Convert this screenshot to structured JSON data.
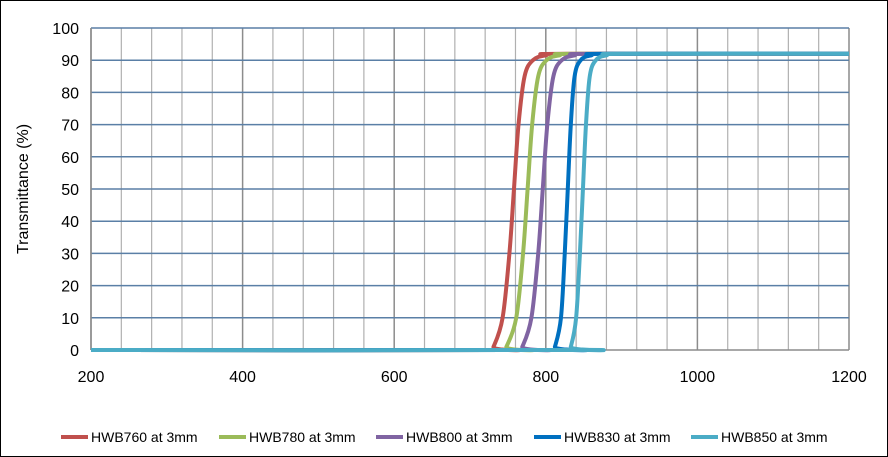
{
  "chart_data": {
    "type": "line",
    "title": "",
    "xlabel": "",
    "ylabel": "Transmittance (%)",
    "xlim": [
      200,
      1200
    ],
    "ylim": [
      0,
      100
    ],
    "xticks": [
      200,
      400,
      600,
      800,
      1000,
      1200
    ],
    "yticks": [
      0,
      10,
      20,
      30,
      40,
      50,
      60,
      70,
      80,
      90,
      100
    ],
    "x_minor_grid_step": 40,
    "grid": true,
    "legend": "bottom",
    "series": [
      {
        "name": "HWB760 at 3mm",
        "color": "#c0504d",
        "points": [
          [
            200,
            0
          ],
          [
            725,
            0
          ],
          [
            731,
            1
          ],
          [
            743,
            10
          ],
          [
            752,
            30
          ],
          [
            758,
            50
          ],
          [
            764,
            70
          ],
          [
            772,
            85
          ],
          [
            783,
            90
          ],
          [
            800,
            91.5
          ],
          [
            830,
            92
          ],
          [
            1200,
            92
          ]
        ]
      },
      {
        "name": "HWB780 at 3mm",
        "color": "#9bbb59",
        "points": [
          [
            200,
            0
          ],
          [
            742,
            0
          ],
          [
            748,
            1
          ],
          [
            761,
            10
          ],
          [
            770,
            30
          ],
          [
            776,
            50
          ],
          [
            782,
            70
          ],
          [
            790,
            85
          ],
          [
            801,
            90
          ],
          [
            818,
            91.5
          ],
          [
            848,
            92
          ],
          [
            1200,
            92
          ]
        ]
      },
      {
        "name": "HWB800 at 3mm",
        "color": "#8064a2",
        "points": [
          [
            200,
            0
          ],
          [
            763,
            0
          ],
          [
            769,
            1
          ],
          [
            781,
            10
          ],
          [
            790,
            30
          ],
          [
            796,
            50
          ],
          [
            802,
            70
          ],
          [
            810,
            85
          ],
          [
            821,
            90
          ],
          [
            838,
            91.5
          ],
          [
            866,
            92
          ],
          [
            1200,
            92
          ]
        ]
      },
      {
        "name": "HWB830 at 3mm",
        "color": "#0070c0",
        "points": [
          [
            200,
            0
          ],
          [
            808,
            0
          ],
          [
            812,
            1
          ],
          [
            820,
            10
          ],
          [
            825,
            30
          ],
          [
            829,
            50
          ],
          [
            833,
            70
          ],
          [
            838,
            85
          ],
          [
            846,
            90
          ],
          [
            860,
            91.5
          ],
          [
            885,
            92
          ],
          [
            1200,
            92
          ]
        ]
      },
      {
        "name": "HWB850 at 3mm",
        "color": "#4bacc6",
        "points": [
          [
            200,
            0
          ],
          [
            829,
            0
          ],
          [
            833,
            1
          ],
          [
            840,
            10
          ],
          [
            845,
            30
          ],
          [
            849,
            50
          ],
          [
            853,
            70
          ],
          [
            858,
            85
          ],
          [
            866,
            90
          ],
          [
            880,
            91.5
          ],
          [
            905,
            92
          ],
          [
            1200,
            92
          ]
        ]
      }
    ]
  }
}
